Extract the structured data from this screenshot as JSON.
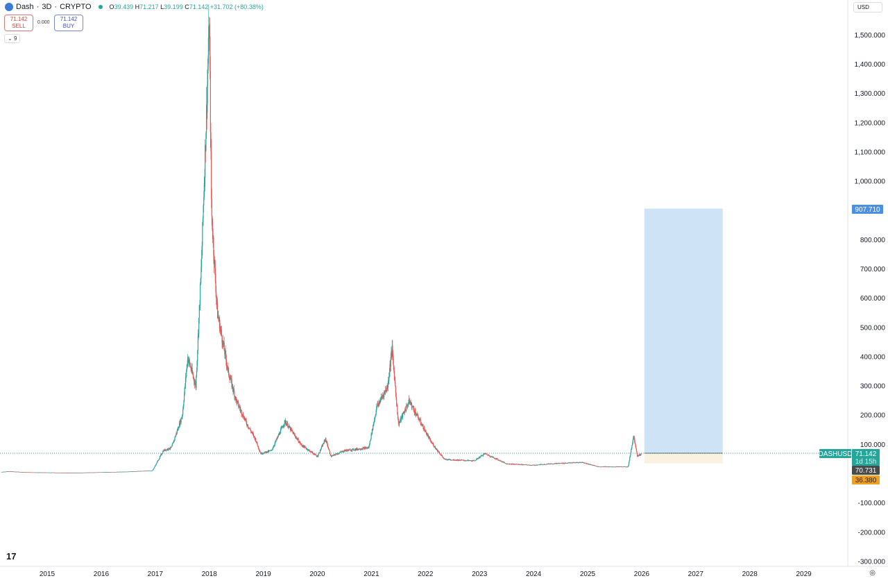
{
  "header": {
    "symbol": "Dash",
    "interval": "3D",
    "exchange": "CRYPTO",
    "open": "39.439",
    "high": "71.217",
    "low": "39.199",
    "close": "71.142",
    "change": "+31.702 (+80.38%)",
    "sell_price": "71.142",
    "sell_label": "SELL",
    "spread": "0.000",
    "buy_price": "71.142",
    "buy_label": "BUY",
    "indicators_count": "9"
  },
  "currency": "USD",
  "icons": {
    "logo": "dash-logo-icon",
    "tv": "tradingview-logo-icon",
    "settings": "settings-icon",
    "indicators": "chevron-down-icon"
  },
  "colors": {
    "up": "#26a69a",
    "down": "#ef5350",
    "target": "#cfe3f7",
    "stop": "#fbf1e0"
  },
  "chart_data": {
    "type": "candlestick",
    "ylim": [
      -300,
      1600
    ],
    "y_ticks": [
      "1,500.000",
      "1,400.000",
      "1,300.000",
      "1,200.000",
      "1,100.000",
      "1,000.000",
      "800.000",
      "700.000",
      "600.000",
      "500.000",
      "400.000",
      "300.000",
      "200.000",
      "100.000",
      "-100.000",
      "-200.000",
      "-300.000"
    ],
    "y_tick_values": [
      1500,
      1400,
      1300,
      1200,
      1100,
      1000,
      800,
      700,
      600,
      500,
      400,
      300,
      200,
      100,
      -100,
      -200,
      -300
    ],
    "x_ticks": [
      "2015",
      "2016",
      "2017",
      "2018",
      "2019",
      "2020",
      "2021",
      "2022",
      "2023",
      "2024",
      "2025",
      "2026",
      "2027",
      "2028",
      "2029"
    ],
    "price_path": [
      [
        2014.15,
        7
      ],
      [
        2014.3,
        9
      ],
      [
        2014.6,
        6
      ],
      [
        2015.5,
        4
      ],
      [
        2016.5,
        8
      ],
      [
        2016.95,
        12
      ],
      [
        2017.15,
        80
      ],
      [
        2017.3,
        90
      ],
      [
        2017.5,
        200
      ],
      [
        2017.6,
        400
      ],
      [
        2017.75,
        300
      ],
      [
        2017.85,
        700
      ],
      [
        2017.95,
        1250
      ],
      [
        2018.0,
        1550
      ],
      [
        2018.04,
        900
      ],
      [
        2018.1,
        700
      ],
      [
        2018.15,
        550
      ],
      [
        2018.25,
        450
      ],
      [
        2018.35,
        350
      ],
      [
        2018.5,
        250
      ],
      [
        2018.7,
        170
      ],
      [
        2018.85,
        120
      ],
      [
        2018.95,
        70
      ],
      [
        2019.15,
        80
      ],
      [
        2019.4,
        180
      ],
      [
        2019.7,
        100
      ],
      [
        2020.0,
        60
      ],
      [
        2020.15,
        120
      ],
      [
        2020.25,
        60
      ],
      [
        2020.5,
        80
      ],
      [
        2020.95,
        90
      ],
      [
        2021.1,
        230
      ],
      [
        2021.3,
        300
      ],
      [
        2021.38,
        430
      ],
      [
        2021.5,
        170
      ],
      [
        2021.7,
        250
      ],
      [
        2021.9,
        180
      ],
      [
        2022.1,
        110
      ],
      [
        2022.35,
        50
      ],
      [
        2022.9,
        45
      ],
      [
        2023.1,
        70
      ],
      [
        2023.5,
        35
      ],
      [
        2024.0,
        30
      ],
      [
        2024.3,
        35
      ],
      [
        2024.9,
        40
      ],
      [
        2025.2,
        25
      ],
      [
        2025.75,
        25
      ],
      [
        2025.85,
        130
      ],
      [
        2025.92,
        60
      ],
      [
        2026.0,
        71.142
      ]
    ],
    "last_price": {
      "label": "DASHUSD",
      "value": "71.142",
      "countdown": "1d 15h"
    },
    "labels": {
      "mid": "70.731",
      "stop": "36.380",
      "target": "907.710"
    },
    "position": {
      "start": 2026.05,
      "end": 2027.5,
      "entry": 71.142,
      "target": 907.71,
      "stop": 36.38
    }
  }
}
